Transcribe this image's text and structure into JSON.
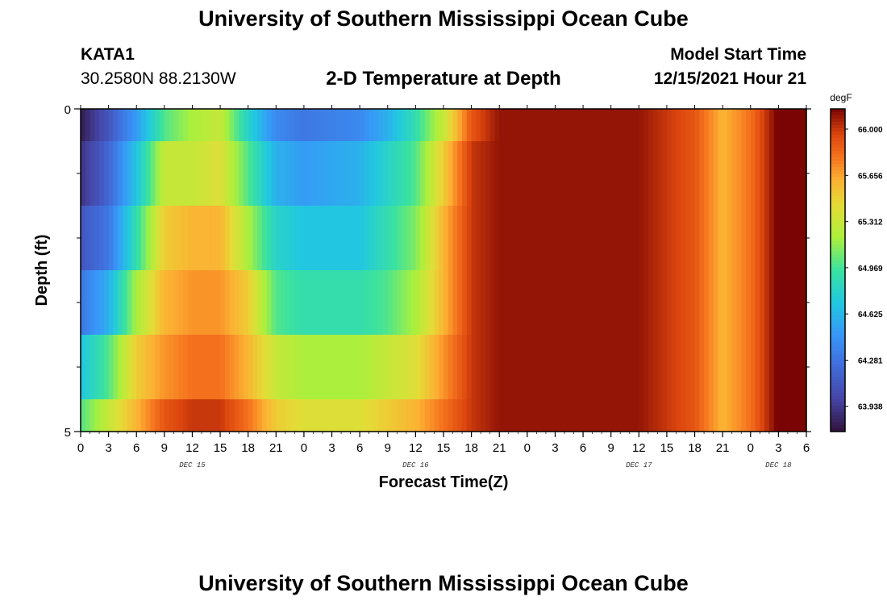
{
  "header": {
    "title": "University of Southern Mississippi Ocean Cube",
    "station": "KATA1",
    "coordinates": "30.2580N  88.2130W",
    "subtitle": "2-D Temperature at Depth",
    "model_start_label": "Model Start Time",
    "model_start_value": "12/15/2021 Hour 21"
  },
  "footer": {
    "title": "University of Southern Mississippi Ocean Cube"
  },
  "chart_data": {
    "type": "heatmap",
    "title": "2-D Temperature at Depth",
    "xlabel": "Forecast Time(Z)",
    "ylabel": "Depth (ft)",
    "x_hours_range": [
      0,
      78
    ],
    "x_tick_labels": [
      "0",
      "3",
      "6",
      "9",
      "12",
      "15",
      "18",
      "21",
      "0",
      "3",
      "6",
      "9",
      "12",
      "15",
      "18",
      "21",
      "0",
      "3",
      "6",
      "9",
      "12",
      "15",
      "18",
      "21",
      "0",
      "3",
      "6"
    ],
    "x_tick_hours": [
      0,
      3,
      6,
      9,
      12,
      15,
      18,
      21,
      24,
      27,
      30,
      33,
      36,
      39,
      42,
      45,
      48,
      51,
      54,
      57,
      60,
      63,
      66,
      69,
      72,
      75,
      78
    ],
    "date_labels": [
      {
        "text": "DEC 15",
        "hour": 12
      },
      {
        "text": "DEC 16",
        "hour": 36
      },
      {
        "text": "DEC 17",
        "hour": 60
      },
      {
        "text": "DEC 18",
        "hour": 75
      }
    ],
    "y_range": [
      0,
      5
    ],
    "y_tick_labels": [
      "0",
      "5"
    ],
    "y_minor_ticks": [
      1,
      2,
      3,
      4
    ],
    "depth_layer_edges": [
      0,
      0.5,
      1.5,
      2.5,
      3.5,
      4.5,
      5
    ],
    "colorbar": {
      "unit": "degF",
      "min": 63.75,
      "max": 66.15,
      "ticks": [
        "66.000",
        "65.656",
        "65.312",
        "64.969",
        "64.625",
        "64.281",
        "63.938"
      ],
      "tick_values": [
        66.0,
        65.656,
        65.312,
        64.969,
        64.625,
        64.281,
        63.938
      ]
    },
    "layers": [
      {
        "depth": 0,
        "keypoints": [
          [
            0,
            63.8
          ],
          [
            3,
            64.1
          ],
          [
            6,
            64.5
          ],
          [
            9,
            65.0
          ],
          [
            12,
            65.2
          ],
          [
            15,
            65.3
          ],
          [
            18,
            64.8
          ],
          [
            21,
            64.4
          ],
          [
            24,
            64.3
          ],
          [
            30,
            64.4
          ],
          [
            33,
            64.6
          ],
          [
            36,
            64.9
          ],
          [
            39,
            65.3
          ],
          [
            42,
            65.9
          ],
          [
            45,
            66.1
          ],
          [
            60,
            66.1
          ],
          [
            66,
            65.9
          ],
          [
            69,
            65.6
          ],
          [
            72,
            65.8
          ],
          [
            76,
            66.3
          ],
          [
            78,
            66.5
          ]
        ]
      },
      {
        "depth": 1,
        "keypoints": [
          [
            0,
            63.9
          ],
          [
            3,
            64.2
          ],
          [
            6,
            64.7
          ],
          [
            9,
            65.3
          ],
          [
            12,
            65.3
          ],
          [
            15,
            65.4
          ],
          [
            18,
            65.0
          ],
          [
            21,
            64.6
          ],
          [
            24,
            64.5
          ],
          [
            30,
            64.6
          ],
          [
            33,
            64.8
          ],
          [
            36,
            65.0
          ],
          [
            39,
            65.5
          ],
          [
            42,
            66.0
          ],
          [
            45,
            66.1
          ],
          [
            60,
            66.1
          ],
          [
            66,
            65.9
          ],
          [
            69,
            65.6
          ],
          [
            72,
            65.8
          ],
          [
            76,
            66.3
          ],
          [
            78,
            66.5
          ]
        ]
      },
      {
        "depth": 2,
        "keypoints": [
          [
            0,
            64.1
          ],
          [
            3,
            64.3
          ],
          [
            6,
            64.9
          ],
          [
            9,
            65.5
          ],
          [
            12,
            65.6
          ],
          [
            15,
            65.6
          ],
          [
            18,
            65.2
          ],
          [
            21,
            64.8
          ],
          [
            24,
            64.7
          ],
          [
            30,
            64.7
          ],
          [
            33,
            64.9
          ],
          [
            36,
            65.1
          ],
          [
            39,
            65.6
          ],
          [
            42,
            66.0
          ],
          [
            45,
            66.1
          ],
          [
            60,
            66.1
          ],
          [
            66,
            65.9
          ],
          [
            69,
            65.6
          ],
          [
            72,
            65.8
          ],
          [
            76,
            66.3
          ],
          [
            78,
            66.5
          ]
        ]
      },
      {
        "depth": 3,
        "keypoints": [
          [
            0,
            64.3
          ],
          [
            3,
            64.6
          ],
          [
            6,
            65.2
          ],
          [
            9,
            65.6
          ],
          [
            12,
            65.7
          ],
          [
            15,
            65.7
          ],
          [
            18,
            65.5
          ],
          [
            21,
            65.0
          ],
          [
            24,
            64.9
          ],
          [
            30,
            64.9
          ],
          [
            33,
            65.0
          ],
          [
            36,
            65.2
          ],
          [
            39,
            65.6
          ],
          [
            42,
            66.0
          ],
          [
            45,
            66.1
          ],
          [
            60,
            66.1
          ],
          [
            66,
            65.9
          ],
          [
            69,
            65.6
          ],
          [
            72,
            65.8
          ],
          [
            76,
            66.3
          ],
          [
            78,
            66.5
          ]
        ]
      },
      {
        "depth": 4,
        "keypoints": [
          [
            0,
            64.7
          ],
          [
            3,
            65.0
          ],
          [
            6,
            65.5
          ],
          [
            9,
            65.7
          ],
          [
            12,
            65.8
          ],
          [
            15,
            65.8
          ],
          [
            18,
            65.6
          ],
          [
            21,
            65.3
          ],
          [
            24,
            65.2
          ],
          [
            30,
            65.2
          ],
          [
            33,
            65.3
          ],
          [
            36,
            65.4
          ],
          [
            39,
            65.7
          ],
          [
            42,
            66.0
          ],
          [
            45,
            66.1
          ],
          [
            60,
            66.1
          ],
          [
            66,
            65.9
          ],
          [
            69,
            65.6
          ],
          [
            72,
            65.8
          ],
          [
            76,
            66.3
          ],
          [
            78,
            66.5
          ]
        ]
      },
      {
        "depth": 5,
        "keypoints": [
          [
            0,
            65.0
          ],
          [
            3,
            65.3
          ],
          [
            6,
            65.6
          ],
          [
            9,
            65.9
          ],
          [
            12,
            66.0
          ],
          [
            15,
            66.0
          ],
          [
            18,
            65.8
          ],
          [
            21,
            65.5
          ],
          [
            24,
            65.4
          ],
          [
            30,
            65.4
          ],
          [
            33,
            65.5
          ],
          [
            36,
            65.6
          ],
          [
            39,
            65.8
          ],
          [
            42,
            66.0
          ],
          [
            45,
            66.1
          ],
          [
            60,
            66.1
          ],
          [
            66,
            65.9
          ],
          [
            69,
            65.6
          ],
          [
            72,
            65.8
          ],
          [
            76,
            66.3
          ],
          [
            78,
            66.5
          ]
        ]
      }
    ]
  }
}
